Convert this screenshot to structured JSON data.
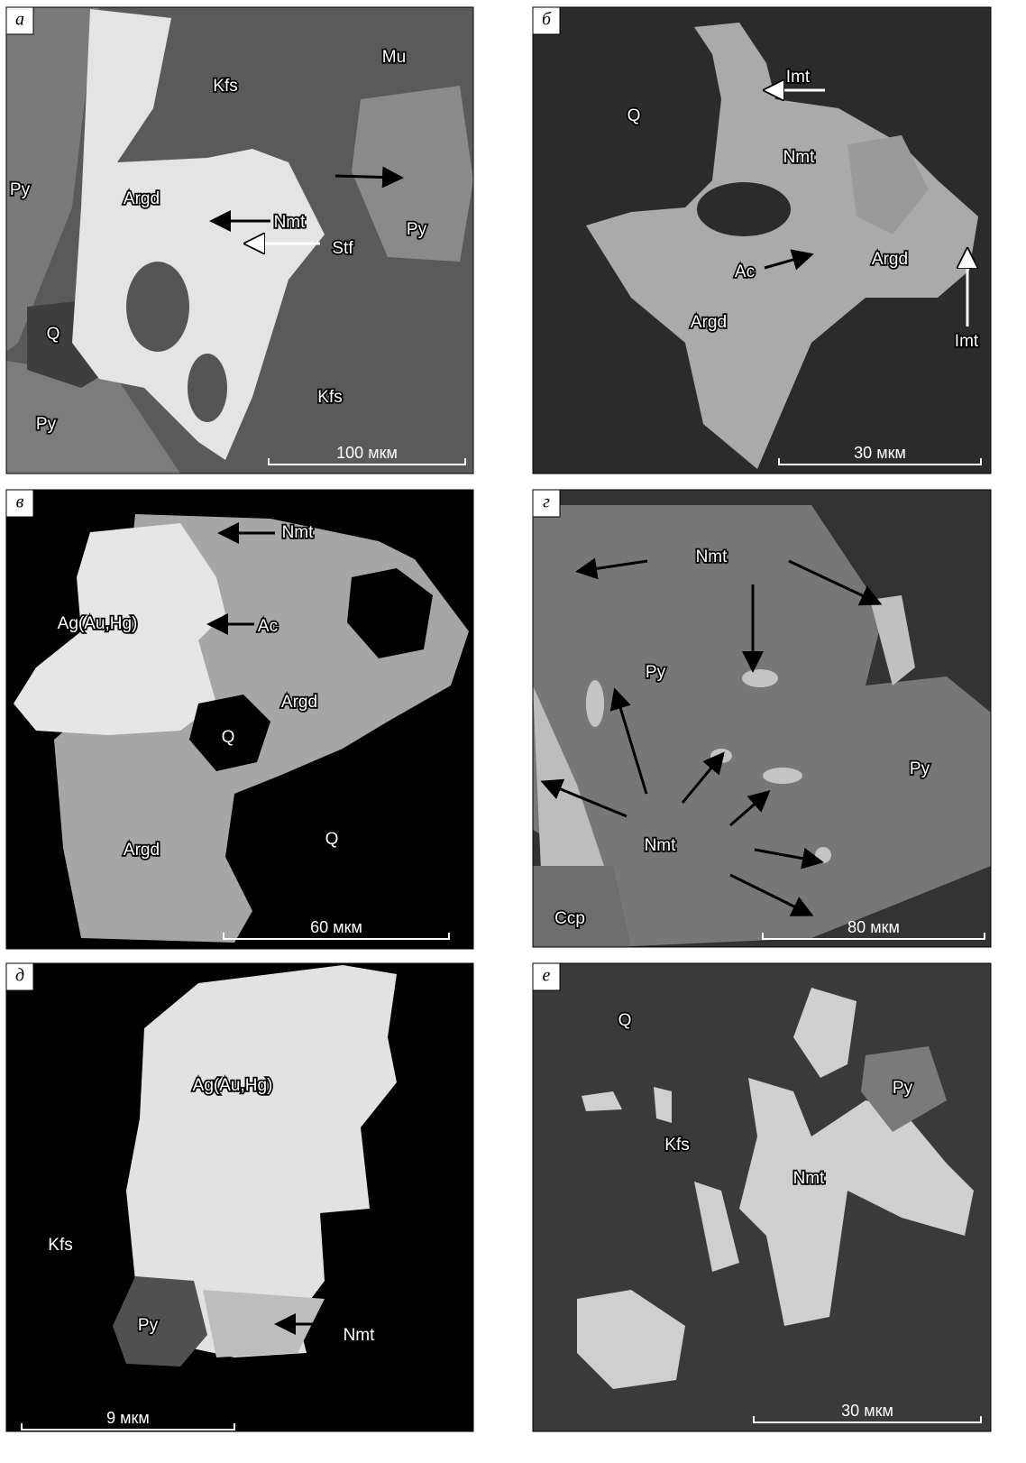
{
  "panels": [
    {
      "letter": "а",
      "labels": [
        "Kfs",
        "Mu",
        "Py",
        "Argd",
        "Nmt",
        "Stf",
        "Py",
        "Q",
        "Py",
        "Kfs"
      ],
      "scale_bar": "100 мкм"
    },
    {
      "letter": "б",
      "labels": [
        "Imt",
        "Q",
        "Nmt",
        "Argd",
        "Ac",
        "Argd",
        "Imt"
      ],
      "scale_bar": "30 мкм"
    },
    {
      "letter": "в",
      "labels": [
        "Nmt",
        "Ac",
        "Ag(Au,Hg)",
        "Argd",
        "Q",
        "Argd",
        "Q"
      ],
      "scale_bar": "60 мкм"
    },
    {
      "letter": "г",
      "labels": [
        "Nmt",
        "Py",
        "Py",
        "Nmt",
        "Ccp"
      ],
      "scale_bar": "80 мкм"
    },
    {
      "letter": "д",
      "labels": [
        "Ag(Au,Hg)",
        "Kfs",
        "Py",
        "Nmt"
      ],
      "scale_bar": "9 мкм"
    },
    {
      "letter": "е",
      "labels": [
        "Q",
        "Py",
        "Kfs",
        "Nmt"
      ],
      "scale_bar": "30 мкм"
    }
  ]
}
